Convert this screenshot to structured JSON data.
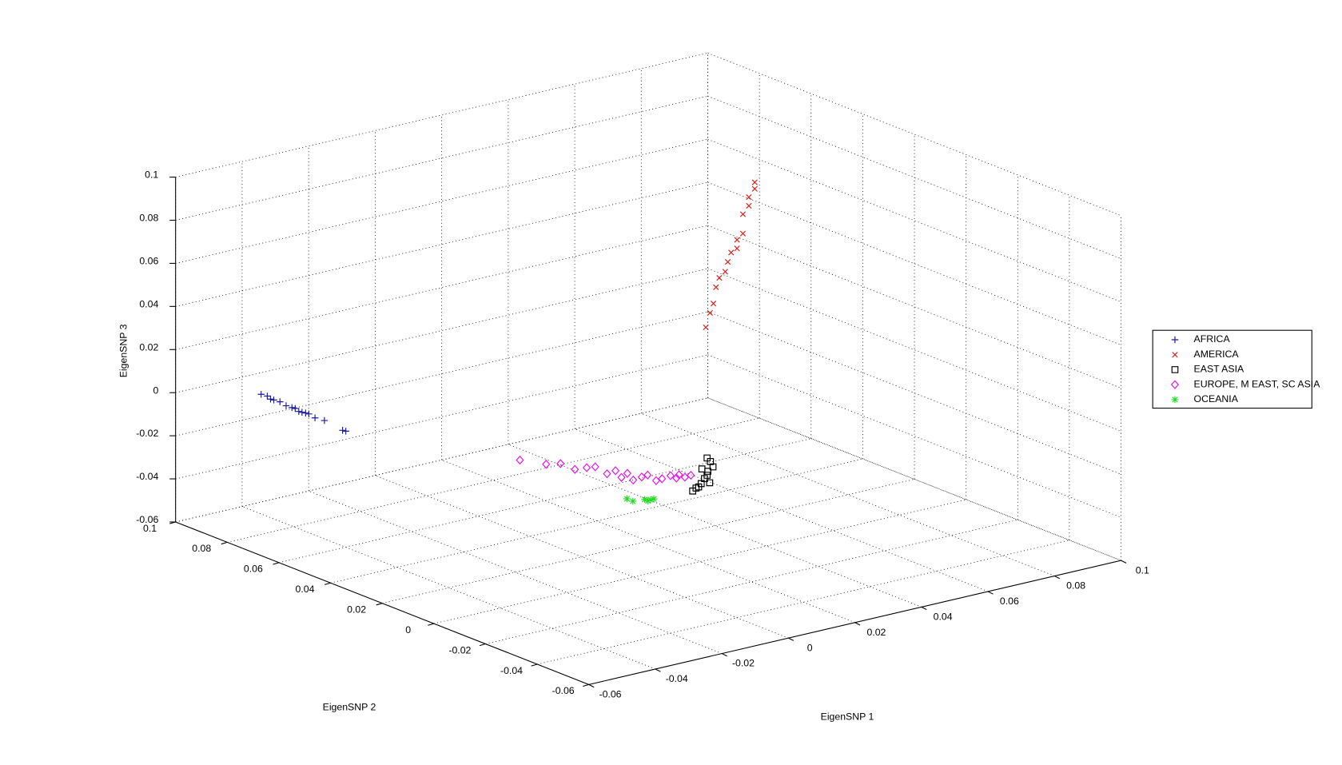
{
  "chart_data": {
    "type": "scatter3d",
    "xlabel": "EigenSNP 1",
    "ylabel": "EigenSNP 2",
    "zlabel": "EigenSNP 3",
    "xlim": [
      -0.06,
      0.1
    ],
    "ylim": [
      -0.06,
      0.1
    ],
    "zlim": [
      -0.06,
      0.1
    ],
    "xticks": [
      -0.06,
      -0.04,
      -0.02,
      0,
      0.02,
      0.04,
      0.06,
      0.08,
      0.1
    ],
    "yticks": [
      -0.06,
      -0.04,
      -0.02,
      0,
      0.02,
      0.04,
      0.06,
      0.08,
      0.1
    ],
    "zticks": [
      -0.06,
      -0.04,
      -0.02,
      0,
      0.02,
      0.04,
      0.06,
      0.08,
      0.1
    ],
    "grid": true,
    "legend": "right",
    "series": [
      {
        "name": "AFRICA",
        "marker": "plus",
        "color": "#1a1aa6",
        "x": [
          -0.0405,
          -0.0402,
          -0.04,
          -0.0398,
          -0.0395,
          -0.0392,
          -0.039,
          -0.0388,
          -0.0385,
          -0.0383,
          -0.038,
          -0.0378,
          -0.0375,
          -0.037,
          -0.0362,
          -0.036
        ],
        "y": [
          0.092,
          0.09,
          0.089,
          0.088,
          0.086,
          0.084,
          0.082,
          0.081,
          0.08,
          0.079,
          0.078,
          0.077,
          0.075,
          0.072,
          0.066,
          0.065
        ],
        "z": [
          -0.004,
          -0.004,
          -0.005,
          -0.005,
          -0.005,
          -0.006,
          -0.006,
          -0.006,
          -0.007,
          -0.007,
          -0.007,
          -0.007,
          -0.008,
          -0.008,
          -0.01,
          -0.01
        ]
      },
      {
        "name": "AMERICA",
        "marker": "x",
        "color": "#e0201b",
        "x": [
          0.0435,
          0.044,
          0.045,
          0.045,
          0.046,
          0.047,
          0.047,
          0.048,
          0.049,
          0.049,
          0.05,
          0.05,
          0.051,
          0.051,
          0.052,
          0.052
        ],
        "y": [
          0.028,
          0.027,
          0.027,
          0.026,
          0.026,
          0.025,
          0.024,
          0.024,
          0.023,
          0.023,
          0.022,
          0.022,
          0.021,
          0.021,
          0.02,
          0.02
        ],
        "z": [
          0.027,
          0.034,
          0.038,
          0.046,
          0.05,
          0.053,
          0.058,
          0.062,
          0.064,
          0.068,
          0.071,
          0.08,
          0.084,
          0.088,
          0.092,
          0.095
        ]
      },
      {
        "name": "EAST ASIA",
        "marker": "square",
        "color": "#000000",
        "x": [
          0.038,
          0.039,
          0.039,
          0.04,
          0.04,
          0.04,
          0.041,
          0.041,
          0.039,
          0.04,
          0.041,
          0.04
        ],
        "y": [
          0.026,
          0.025,
          0.024,
          0.024,
          0.023,
          0.025,
          0.022,
          0.023,
          0.026,
          0.022,
          0.024,
          0.023
        ],
        "z": [
          -0.046,
          -0.044,
          -0.042,
          -0.04,
          -0.038,
          -0.036,
          -0.034,
          -0.032,
          -0.045,
          -0.041,
          -0.037,
          -0.03
        ]
      },
      {
        "name": "EUROPE, M EAST, SC ASIA",
        "marker": "diamond",
        "color": "#ee11ee",
        "x": [
          0.014,
          0.018,
          0.02,
          0.022,
          0.024,
          0.025,
          0.027,
          0.028,
          0.029,
          0.03,
          0.031,
          0.032,
          0.033,
          0.034,
          0.035,
          0.036,
          0.037,
          0.037,
          0.038,
          0.039
        ],
        "y": [
          0.062,
          0.057,
          0.054,
          0.051,
          0.049,
          0.047,
          0.045,
          0.043,
          0.042,
          0.041,
          0.04,
          0.038,
          0.037,
          0.035,
          0.034,
          0.032,
          0.031,
          0.03,
          0.029,
          0.028
        ],
        "z": [
          -0.04,
          -0.041,
          -0.04,
          -0.042,
          -0.041,
          -0.04,
          -0.043,
          -0.041,
          -0.044,
          -0.042,
          -0.045,
          -0.043,
          -0.042,
          -0.044,
          -0.043,
          -0.041,
          -0.042,
          -0.04,
          -0.041,
          -0.04
        ]
      },
      {
        "name": "OCEANIA",
        "marker": "asterisk",
        "color": "#22dd22",
        "x": [
          0.026,
          0.027,
          0.029,
          0.03,
          0.03,
          0.031
        ],
        "y": [
          0.036,
          0.035,
          0.033,
          0.033,
          0.032,
          0.032
        ],
        "z": [
          -0.05,
          -0.051,
          -0.05,
          -0.051,
          -0.05,
          -0.05
        ]
      }
    ]
  }
}
